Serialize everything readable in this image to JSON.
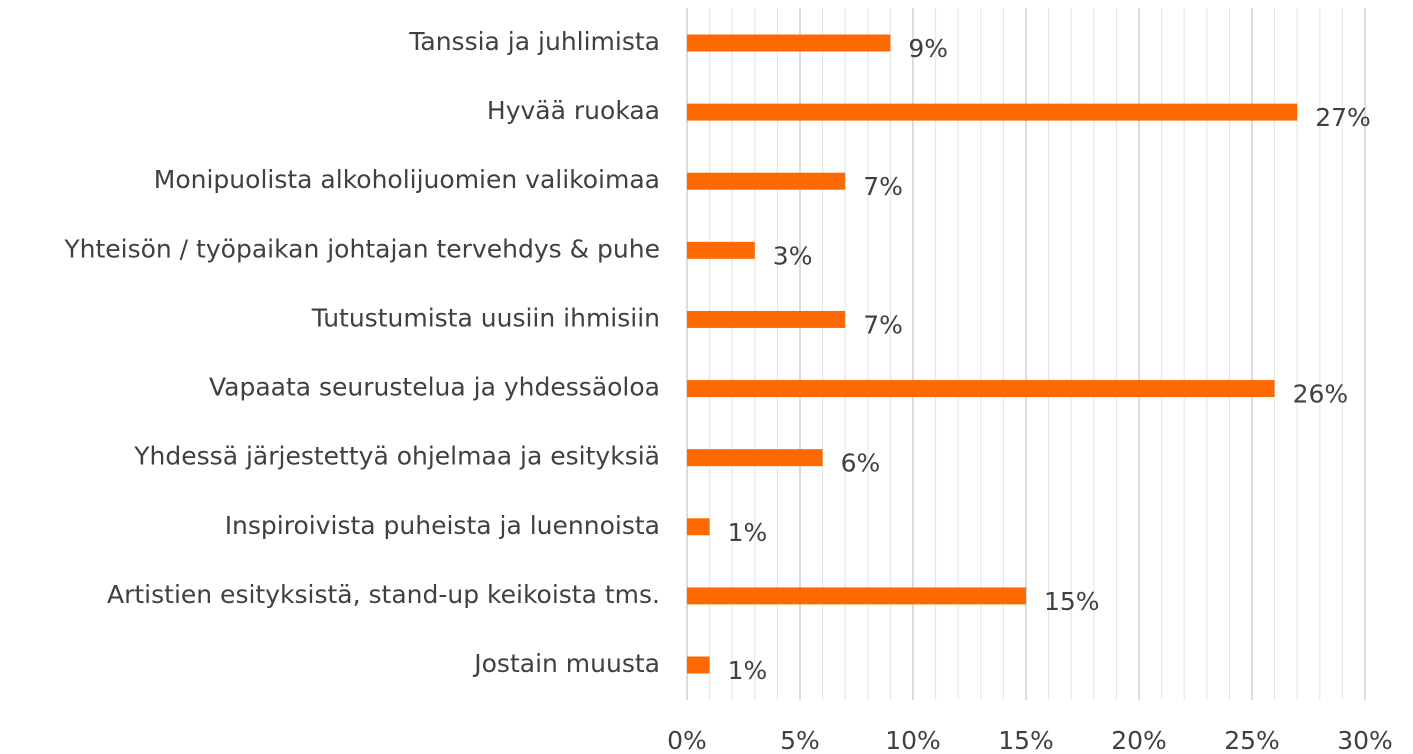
{
  "chart_data": {
    "type": "bar",
    "orientation": "horizontal",
    "categories": [
      "Tanssia ja juhlimista",
      "Hyvää ruokaa",
      "Monipuolista alkoholijuomien valikoimaa",
      "Yhteisön / työpaikan johtajan tervehdys & puhe",
      "Tutustumista uusiin ihmisiin",
      "Vapaata seurustelua ja yhdessäoloa",
      "Yhdessä järjestettyä ohjelmaa ja esityksiä",
      "Inspiroivista puheista ja luennoista",
      "Artistien esityksistä, stand-up keikoista tms.",
      "Jostain muusta"
    ],
    "values": [
      9,
      27,
      7,
      3,
      7,
      26,
      6,
      1,
      15,
      1
    ],
    "value_labels": [
      "9%",
      "27%",
      "7%",
      "3%",
      "7%",
      "26%",
      "6%",
      "1%",
      "15%",
      "1%"
    ],
    "color": "#ff6a00",
    "xlim": [
      0,
      30
    ],
    "xticks": [
      {
        "value": 0,
        "label": "0%"
      },
      {
        "value": 5,
        "label": "5%"
      },
      {
        "value": 10,
        "label": "10%"
      },
      {
        "value": 15,
        "label": "15%"
      },
      {
        "value": 20,
        "label": "20%"
      },
      {
        "value": 25,
        "label": "25%"
      },
      {
        "value": 30,
        "label": "30%"
      }
    ],
    "minor_xticks": [
      1,
      2,
      3,
      4,
      6,
      7,
      8,
      9,
      11,
      12,
      13,
      14,
      16,
      17,
      18,
      19,
      21,
      22,
      23,
      24,
      26,
      27,
      28,
      29
    ],
    "grid": true
  }
}
